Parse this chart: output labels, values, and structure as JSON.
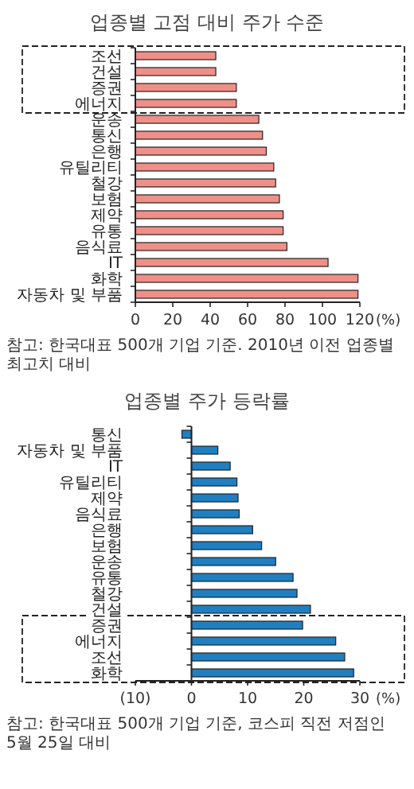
{
  "chart_data": [
    {
      "type": "bar",
      "orientation": "horizontal",
      "title": "업종별 고점 대비 주가 수준",
      "xlabel": "(%)",
      "categories": [
        "조선",
        "건설",
        "증권",
        "에너지",
        "운송",
        "통신",
        "은행",
        "유틸리티",
        "철강",
        "보험",
        "제약",
        "유통",
        "음식료",
        "IT",
        "화학",
        "자동차 및 부품"
      ],
      "values": [
        43,
        43,
        54,
        54,
        66,
        68,
        70,
        74,
        75,
        77,
        79,
        79,
        81,
        103,
        119,
        119
      ],
      "color": "#ee8f88",
      "xlim": [
        0,
        120
      ],
      "xticks": [
        0,
        20,
        40,
        60,
        80,
        100,
        120
      ],
      "annotations": [
        "참고: 한국대표 500개 기업 기준. 2010년 이전 업종별 최고치 대비"
      ]
    },
    {
      "type": "bar",
      "orientation": "horizontal",
      "title": "업종별 주가 등락률",
      "xlabel": "(%)",
      "categories": [
        "통신",
        "자동차 및 부품",
        "IT",
        "유틸리티",
        "제약",
        "음식료",
        "은행",
        "보험",
        "운송",
        "유통",
        "철강",
        "건설",
        "증권",
        "에너지",
        "조선",
        "화학"
      ],
      "values": [
        -1.7,
        4.7,
        6.9,
        8.1,
        8.3,
        8.5,
        10.9,
        12.5,
        15.0,
        18.1,
        18.8,
        21.2,
        19.8,
        25.7,
        27.3,
        28.9
      ],
      "color": "#1f7fc0",
      "xlim": [
        -10,
        30
      ],
      "xticks": [
        {
          "value": -10,
          "label": "(10)"
        },
        0,
        10,
        20,
        30
      ],
      "annotations": [
        "참고: 한국대표 500개 기업 기준, 코스피 직전 저점인 5월 25일 대비"
      ]
    }
  ]
}
